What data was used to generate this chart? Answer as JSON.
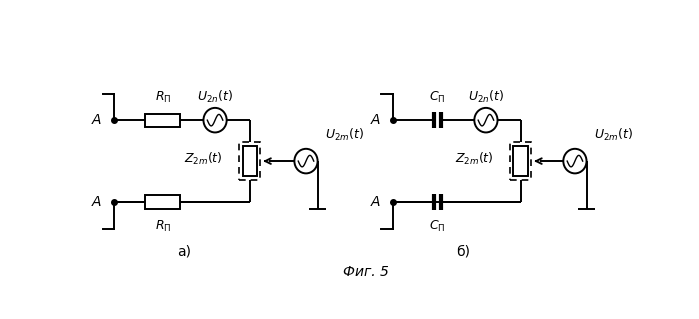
{
  "fig_width": 6.99,
  "fig_height": 3.19,
  "dpi": 100,
  "bg_color": "#ffffff",
  "line_color": "#000000",
  "label_a": "A",
  "label_rp": "R_{\\Pi}",
  "label_cp": "C_{\\Pi}",
  "label_u2n": "U_{2n}(t)",
  "label_u2m": "U_{2m}(t)",
  "label_z2m": "Z_{2m}(t)",
  "label_a_fig": "а)",
  "label_b_fig": "б)",
  "label_fig": "Фиг. 5"
}
